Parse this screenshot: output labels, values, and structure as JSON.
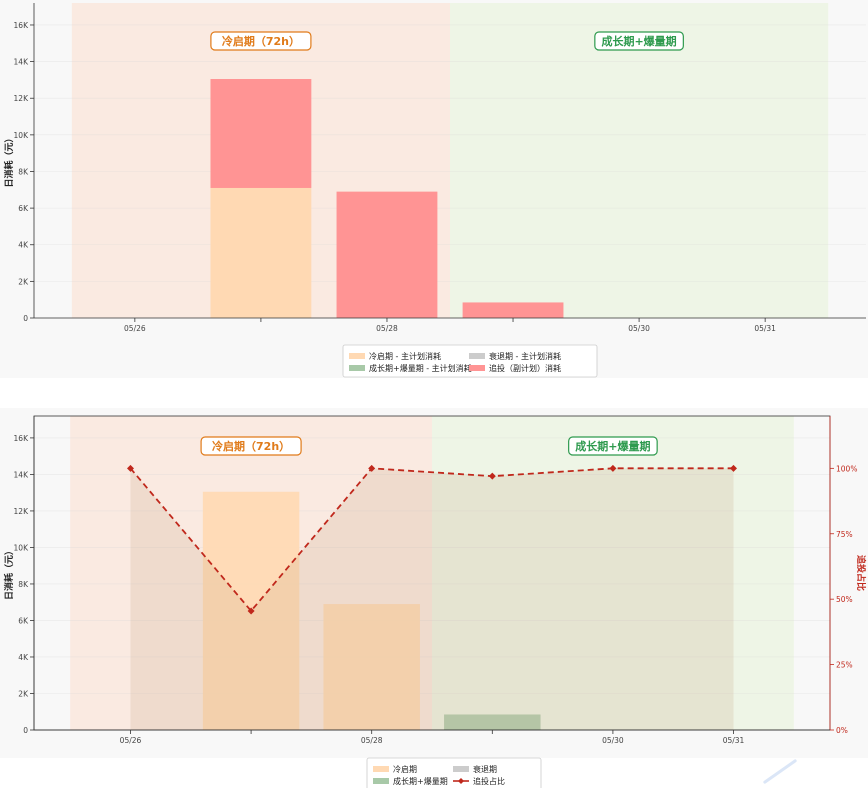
{
  "colors": {
    "cold_phase_bg": "#fae8dd",
    "growth_phase_bg": "#ecf4e3",
    "cold_label": "#e07b1a",
    "growth_label": "#2e9a4e",
    "cold_bar": "#ffd9b3",
    "growth_bar": "#a8c9a8",
    "decline_bar": "#cccccc",
    "additional_bar": "#ff9494",
    "ratio_line": "#c0281c",
    "right_axis": "#c0281c"
  },
  "top_chart": {
    "ylabel": "日消耗（元）",
    "phase_labels": {
      "cold": "冷启期（72h）",
      "growth": "成长期+爆量期"
    },
    "legend": [
      {
        "label": "冷启期 - 主计划消耗",
        "color": "#ffd9b3",
        "type": "patch"
      },
      {
        "label": "衰退期 - 主计划消耗",
        "color": "#cccccc",
        "type": "patch"
      },
      {
        "label": "成长期+爆量期 - 主计划消耗",
        "color": "#a8c9a8",
        "type": "patch"
      },
      {
        "label": "追投（副计划）消耗",
        "color": "#ff9494",
        "type": "patch"
      }
    ]
  },
  "bottom_chart": {
    "ylabel": "日消耗（元）",
    "ylabel_right": "追投占比",
    "phase_labels": {
      "cold": "冷启期（72h）",
      "growth": "成长期+爆量期"
    },
    "legend": [
      {
        "label": "冷启期",
        "color": "#ffd9b3",
        "type": "patch"
      },
      {
        "label": "衰退期",
        "color": "#cccccc",
        "type": "patch"
      },
      {
        "label": "成长期+爆量期",
        "color": "#a8c9a8",
        "type": "patch"
      },
      {
        "label": "追投占比",
        "color": "#c0281c",
        "type": "line"
      }
    ]
  },
  "chart_data": [
    {
      "type": "bar",
      "stacked": true,
      "x_index": [
        0,
        1,
        2,
        3,
        4,
        5
      ],
      "xtick_labels": [
        "05/26",
        "",
        "05/28",
        "",
        "05/30",
        "05/31"
      ],
      "ylim": [
        0,
        17200
      ],
      "yticks": [
        0,
        2000,
        4000,
        6000,
        8000,
        10000,
        12000,
        14000,
        16000
      ],
      "ytick_labels": [
        "0",
        "2K",
        "4K",
        "6K",
        "8K",
        "10K",
        "12K",
        "14K",
        "16K"
      ],
      "phase_spans": [
        {
          "phase": "cold",
          "from": -0.5,
          "to": 2.5
        },
        {
          "phase": "growth",
          "from": 2.5,
          "to": 5.5
        }
      ],
      "series": [
        {
          "key": "main_cold",
          "values": [
            0,
            7100,
            0,
            0,
            0,
            0
          ],
          "color": "#ffd9b3"
        },
        {
          "key": "main_growth",
          "values": [
            0,
            0,
            0,
            0,
            0,
            0
          ],
          "color": "#a8c9a8"
        },
        {
          "key": "main_decline",
          "values": [
            0,
            0,
            0,
            0,
            0,
            0
          ],
          "color": "#cccccc"
        },
        {
          "key": "additional",
          "values": [
            0,
            5950,
            6900,
            850,
            0,
            0
          ],
          "color": "#ff9494"
        }
      ],
      "grid": true
    },
    {
      "type": "bar+line",
      "x_index": [
        0,
        1,
        2,
        3,
        4,
        5
      ],
      "xtick_labels": [
        "05/26",
        "",
        "05/28",
        "",
        "05/30",
        "05/31"
      ],
      "ylim": [
        0,
        17200
      ],
      "yticks": [
        0,
        2000,
        4000,
        6000,
        8000,
        10000,
        12000,
        14000,
        16000
      ],
      "ytick_labels": [
        "0",
        "2K",
        "4K",
        "6K",
        "8K",
        "10K",
        "12K",
        "14K",
        "16K"
      ],
      "y2lim": [
        0,
        1.2
      ],
      "y2ticks": [
        0,
        0.25,
        0.5,
        0.75,
        1.0
      ],
      "y2tick_labels": [
        "0%",
        "25%",
        "50%",
        "75%",
        "100%"
      ],
      "phase_spans": [
        {
          "phase": "cold",
          "from": -0.5,
          "to": 2.5
        },
        {
          "phase": "growth",
          "from": 2.5,
          "to": 5.5
        }
      ],
      "bars": [
        {
          "x": 1,
          "value": 13050,
          "color": "#ffd9b3"
        },
        {
          "x": 2,
          "value": 6900,
          "color": "#ffd9b3"
        },
        {
          "x": 3,
          "value": 850,
          "color": "#a8c9a8"
        }
      ],
      "ratio_line": {
        "values": [
          1.0,
          0.455,
          1.0,
          0.97,
          1.0,
          1.0
        ],
        "color": "#c0281c"
      },
      "grid": true
    }
  ]
}
